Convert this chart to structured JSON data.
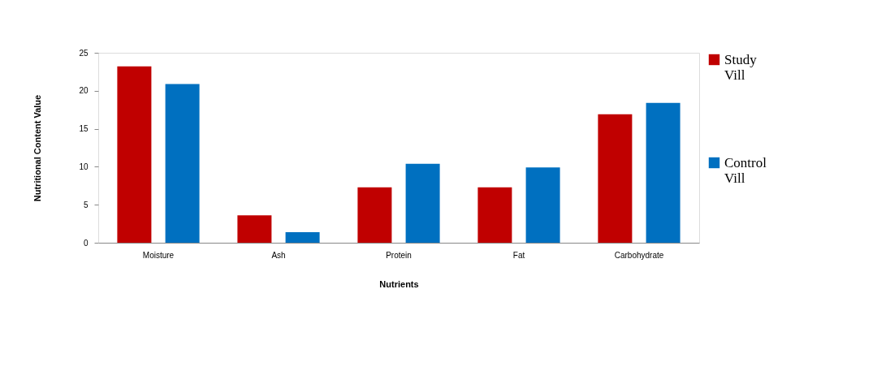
{
  "chart_data": {
    "type": "bar",
    "xlabel": "Nutrients",
    "ylabel": "Nutritional Content Value",
    "categories": [
      "Moisture",
      "Ash",
      "Protein",
      "Fat",
      "Carbohydrate"
    ],
    "series": [
      {
        "name": "Study Vill",
        "color": "#c00000",
        "values": [
          23.2,
          3.6,
          7.3,
          7.3,
          16.9
        ]
      },
      {
        "name": "Control Vill",
        "color": "#0070c0",
        "values": [
          20.9,
          1.4,
          10.4,
          9.9,
          18.4
        ]
      }
    ],
    "ylim": [
      0,
      25
    ],
    "yticks": [
      0,
      5,
      10,
      15,
      20,
      25
    ],
    "grid": false,
    "legend": "right"
  }
}
